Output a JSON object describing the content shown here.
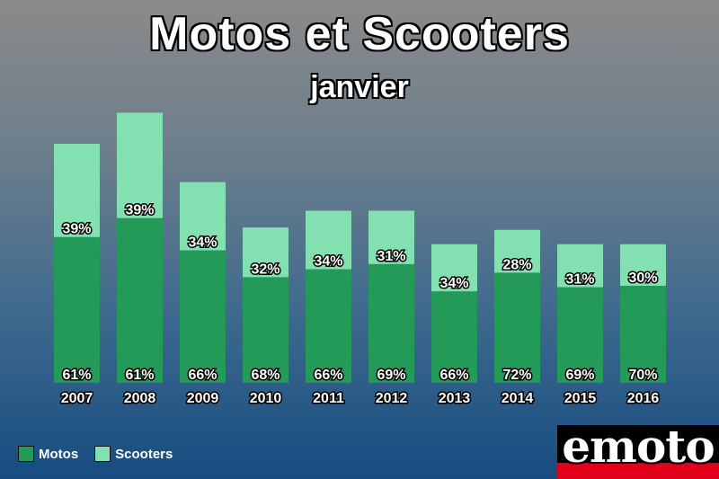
{
  "header": {
    "title": "Motos et Scooters",
    "subtitle": "janvier"
  },
  "legend": [
    {
      "name": "Motos",
      "color": "#239a57"
    },
    {
      "name": "Scooters",
      "color": "#83e0b0"
    }
  ],
  "logo": {
    "text": "emoto"
  },
  "chart_data": {
    "type": "bar",
    "stacked": true,
    "title": "Motos et Scooters",
    "subtitle": "janvier",
    "categories": [
      "2007",
      "2008",
      "2009",
      "2010",
      "2011",
      "2012",
      "2013",
      "2014",
      "2015",
      "2016"
    ],
    "totals_relative": [
      1.0,
      1.13,
      0.84,
      0.65,
      0.72,
      0.72,
      0.58,
      0.64,
      0.58,
      0.58
    ],
    "series": [
      {
        "name": "Motos",
        "color": "#239a57",
        "values": [
          61,
          61,
          66,
          68,
          66,
          69,
          66,
          72,
          69,
          70
        ],
        "labels": [
          "61%",
          "61%",
          "66%",
          "68%",
          "66%",
          "69%",
          "66%",
          "72%",
          "69%",
          "70%"
        ]
      },
      {
        "name": "Scooters",
        "color": "#83e0b0",
        "values": [
          39,
          39,
          34,
          32,
          34,
          31,
          34,
          28,
          31,
          30
        ],
        "labels": [
          "39%",
          "39%",
          "34%",
          "32%",
          "34%",
          "31%",
          "34%",
          "28%",
          "31%",
          "30%"
        ]
      }
    ],
    "grid": false,
    "legend_position": "bottom-left"
  }
}
